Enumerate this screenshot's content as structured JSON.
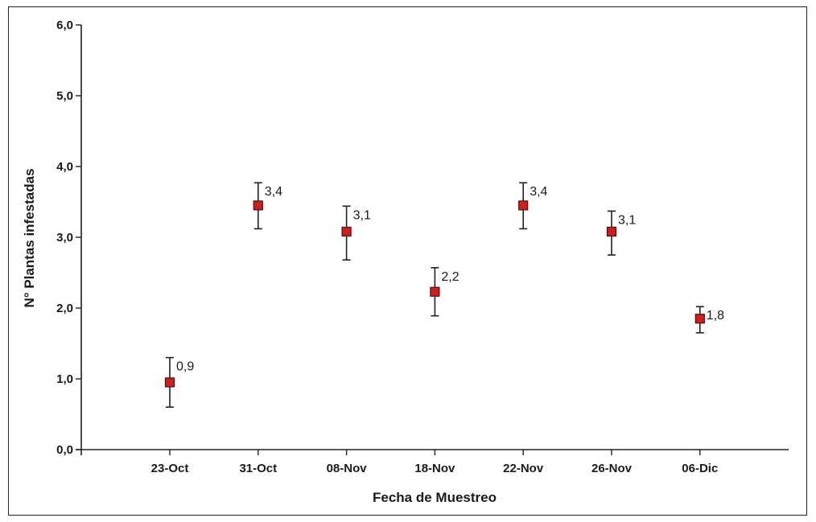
{
  "chart_data": {
    "type": "scatter",
    "title": "",
    "xlabel": "Fecha de Muestreo",
    "ylabel": "N° Plantas infestadas",
    "categories": [
      "23-Oct",
      "31-Oct",
      "08-Nov",
      "18-Nov",
      "22-Nov",
      "26-Nov",
      "06-Dic"
    ],
    "values": [
      0.95,
      3.45,
      3.08,
      2.23,
      3.45,
      3.08,
      1.85
    ],
    "error_low": [
      0.6,
      3.12,
      2.68,
      1.89,
      3.12,
      2.75,
      1.65
    ],
    "error_high": [
      1.3,
      3.77,
      3.44,
      2.57,
      3.77,
      3.37,
      2.02
    ],
    "data_labels": [
      "0,9",
      "3,4",
      "3,1",
      "2,2",
      "3,4",
      "3,1",
      "1,8"
    ],
    "ylim": [
      0,
      6
    ],
    "yticks": [
      "0,0",
      "1,0",
      "2,0",
      "3,0",
      "4,0",
      "5,0",
      "6,0"
    ],
    "grid": false,
    "marker_color": "#cc1f1f",
    "marker_edge_color": "#5a0a0a",
    "errorbar_color": "#222222"
  }
}
